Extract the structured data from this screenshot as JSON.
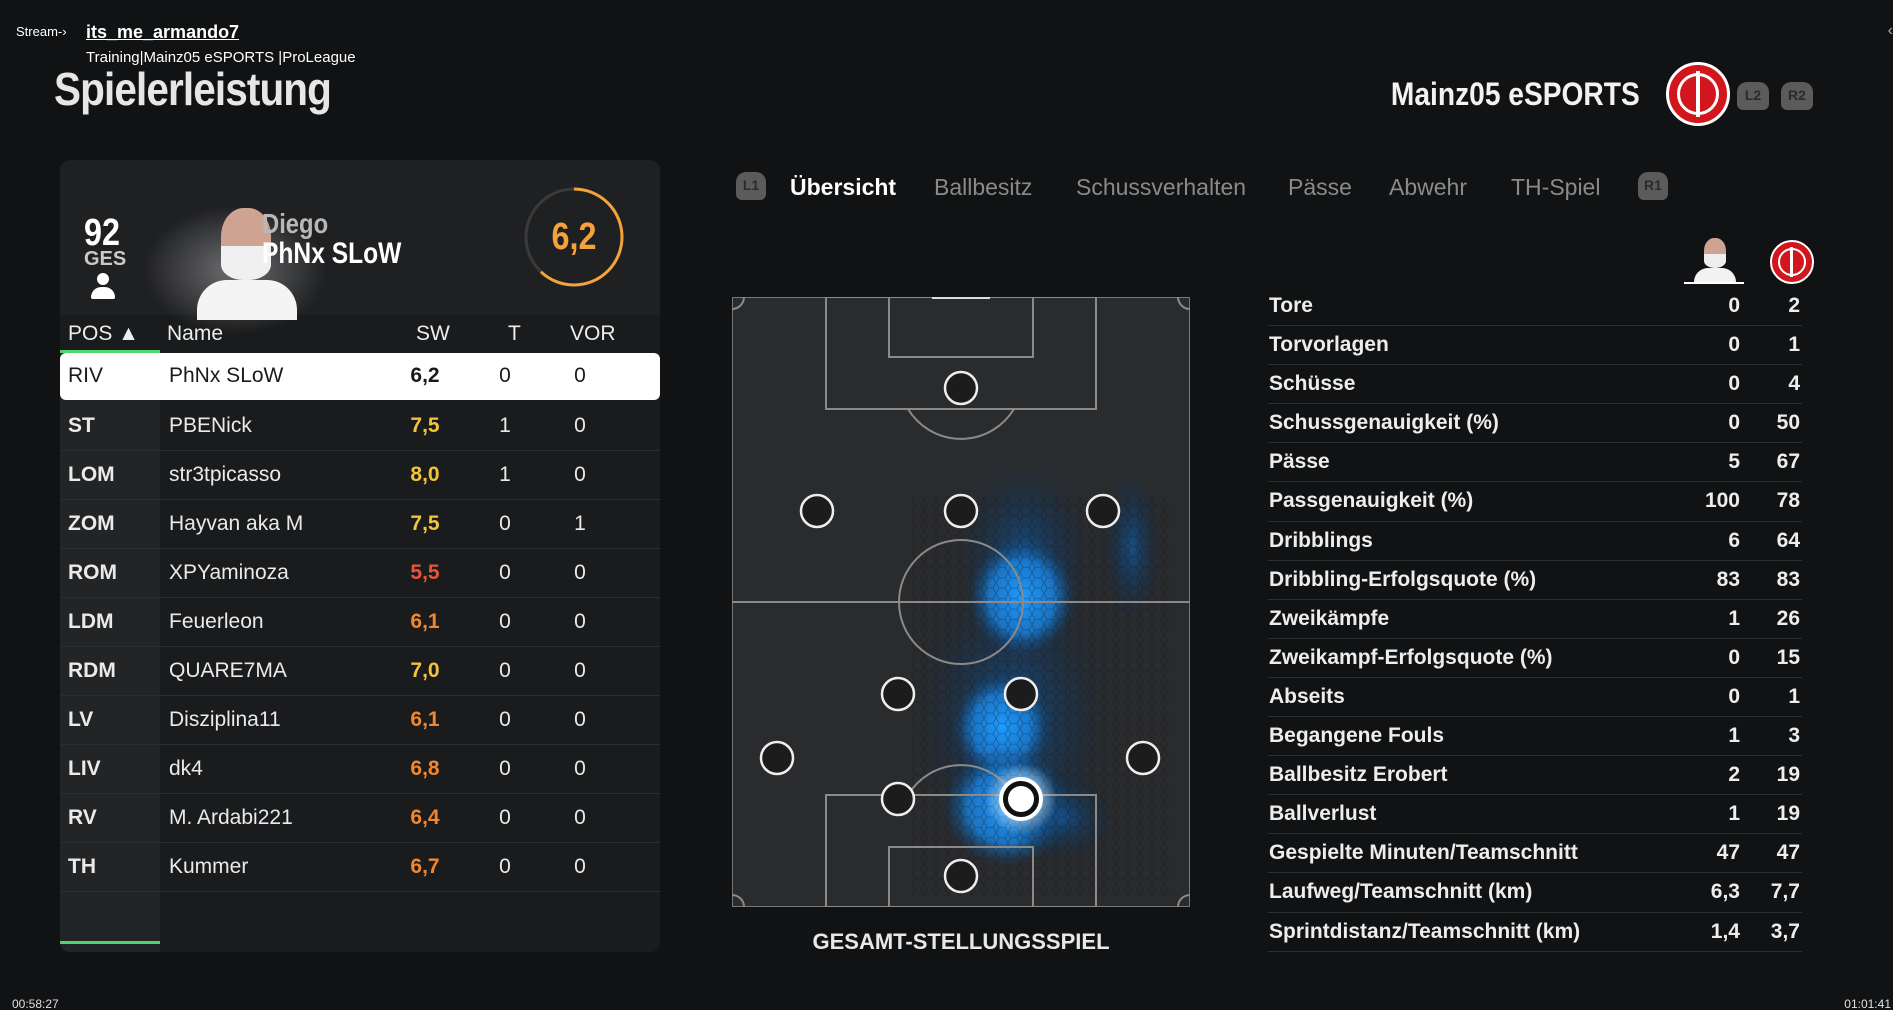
{
  "stream": {
    "tag": "Stream-›",
    "user": "its_me_armando7",
    "subtitle": "Training|Mainz05 eSPORTS |ProLeague",
    "back_glyph": "‹"
  },
  "page": {
    "title": "Spielerleistung",
    "team_name": "Mainz05 eSPORTS",
    "team_logo_icon": "mainz05-logo-icon",
    "controls": {
      "l2": "L2",
      "r2": "R2",
      "l1": "L1",
      "r1": "R1"
    }
  },
  "player": {
    "overall": "92",
    "overall_label": "GES",
    "first_name": "Diego",
    "last_name": "PhNx SLoW",
    "rating": "6,2",
    "rating_fraction": 0.62,
    "rating_color": "#f4a23a"
  },
  "table": {
    "headers": {
      "pos": "POS ▲",
      "name": "Name",
      "sw": "SW",
      "t": "T",
      "vor": "VOR"
    },
    "rows": [
      {
        "pos": "RIV",
        "name": "PhNx SLoW",
        "sw": "6,2",
        "t": "0",
        "vor": "0",
        "sw_color": "#1a1a1a",
        "selected": true
      },
      {
        "pos": "ST",
        "name": "PBENick",
        "sw": "7,5",
        "t": "1",
        "vor": "0",
        "sw_color": "#f2c33b"
      },
      {
        "pos": "LOM",
        "name": "str3tpicasso",
        "sw": "8,0",
        "t": "1",
        "vor": "0",
        "sw_color": "#f2c33b"
      },
      {
        "pos": "ZOM",
        "name": "Hayvan aka M",
        "sw": "7,5",
        "t": "0",
        "vor": "1",
        "sw_color": "#f2c33b"
      },
      {
        "pos": "ROM",
        "name": "XPYaminoza",
        "sw": "5,5",
        "t": "0",
        "vor": "0",
        "sw_color": "#e8543a"
      },
      {
        "pos": "LDM",
        "name": "Feuerleon",
        "sw": "6,1",
        "t": "0",
        "vor": "0",
        "sw_color": "#f0872f"
      },
      {
        "pos": "RDM",
        "name": "QUARE7MA",
        "sw": "7,0",
        "t": "0",
        "vor": "0",
        "sw_color": "#f2c33b"
      },
      {
        "pos": "LV",
        "name": "Disziplina11",
        "sw": "6,1",
        "t": "0",
        "vor": "0",
        "sw_color": "#f0872f"
      },
      {
        "pos": "LIV",
        "name": "dk4",
        "sw": "6,8",
        "t": "0",
        "vor": "0",
        "sw_color": "#f0872f"
      },
      {
        "pos": "RV",
        "name": "M. Ardabi221",
        "sw": "6,4",
        "t": "0",
        "vor": "0",
        "sw_color": "#f0872f"
      },
      {
        "pos": "TH",
        "name": "Kummer",
        "sw": "6,7",
        "t": "0",
        "vor": "0",
        "sw_color": "#f0872f"
      }
    ]
  },
  "tabs": [
    {
      "label": "Übersicht",
      "active": true
    },
    {
      "label": "Ballbesitz"
    },
    {
      "label": "Schussverhalten"
    },
    {
      "label": "Pässe"
    },
    {
      "label": "Abwehr"
    },
    {
      "label": "TH-Spiel"
    }
  ],
  "pitch": {
    "caption": "GESAMT-STELLUNGSSPIEL",
    "heatmap_color": "#1e90ff"
  },
  "stats": [
    {
      "label": "Tore",
      "player": "0",
      "team": "2"
    },
    {
      "label": "Torvorlagen",
      "player": "0",
      "team": "1"
    },
    {
      "label": "Schüsse",
      "player": "0",
      "team": "4"
    },
    {
      "label": "Schussgenauigkeit (%)",
      "player": "0",
      "team": "50"
    },
    {
      "label": "Pässe",
      "player": "5",
      "team": "67"
    },
    {
      "label": "Passgenauigkeit (%)",
      "player": "100",
      "team": "78"
    },
    {
      "label": "Dribblings",
      "player": "6",
      "team": "64"
    },
    {
      "label": "Dribbling-Erfolgsquote (%)",
      "player": "83",
      "team": "83"
    },
    {
      "label": "Zweikämpfe",
      "player": "1",
      "team": "26"
    },
    {
      "label": "Zweikampf-Erfolgsquote (%)",
      "player": "0",
      "team": "15"
    },
    {
      "label": "Abseits",
      "player": "0",
      "team": "1"
    },
    {
      "label": "Begangene Fouls",
      "player": "1",
      "team": "3"
    },
    {
      "label": "Ballbesitz Erobert",
      "player": "2",
      "team": "19"
    },
    {
      "label": "Ballverlust",
      "player": "1",
      "team": "19"
    },
    {
      "label": "Gespielte Minuten/Teamschnitt",
      "player": "47",
      "team": "47"
    },
    {
      "label": "Laufweg/Teamschnitt (km)",
      "player": "6,3",
      "team": "7,7"
    },
    {
      "label": "Sprintdistanz/Teamschnitt (km)",
      "player": "1,4",
      "team": "3,7"
    }
  ],
  "timestamps": {
    "left": "00:58:27",
    "right": "01:01:41"
  }
}
